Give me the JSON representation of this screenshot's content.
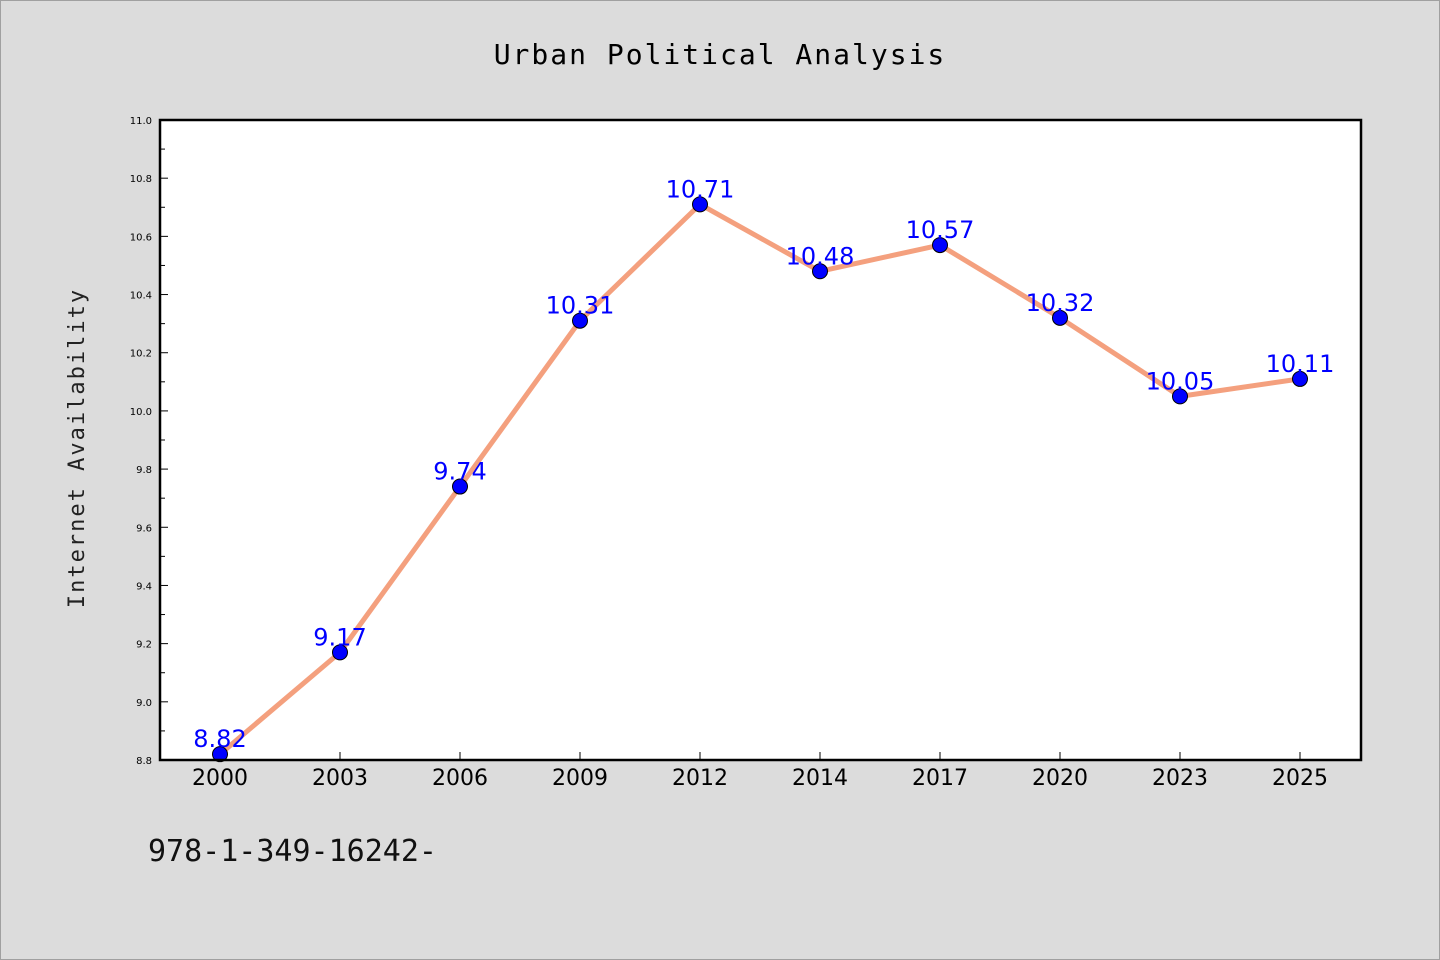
{
  "chart_data": {
    "type": "line",
    "title": "Urban Political Analysis",
    "xlabel": "",
    "ylabel": "Internet Availability",
    "categories": [
      "2000",
      "2003",
      "2006",
      "2009",
      "2012",
      "2014",
      "2017",
      "2020",
      "2023",
      "2025"
    ],
    "values": [
      8.82,
      9.17,
      9.74,
      10.31,
      10.71,
      10.48,
      10.57,
      10.32,
      10.05,
      10.11
    ],
    "data_labels": [
      "8.82",
      "9.17",
      "9.74",
      "10.31",
      "10.71",
      "10.48",
      "10.57",
      "10.32",
      "10.05",
      "10.11"
    ],
    "ylim": [
      8.8,
      11.0
    ],
    "y_ticks": [
      "8.8",
      "9.0",
      "9.2",
      "9.4",
      "9.6",
      "9.8",
      "10.0",
      "10.2",
      "10.4",
      "10.6",
      "10.8",
      "11.0"
    ],
    "grid": false,
    "line_color": "#f4a07e",
    "marker_color": "#0000ff",
    "label_color": "#0000ff",
    "plot_background": "#ffffff",
    "page_background": "#dcdcdc"
  },
  "footer": {
    "code": "978-1-349-16242-"
  }
}
